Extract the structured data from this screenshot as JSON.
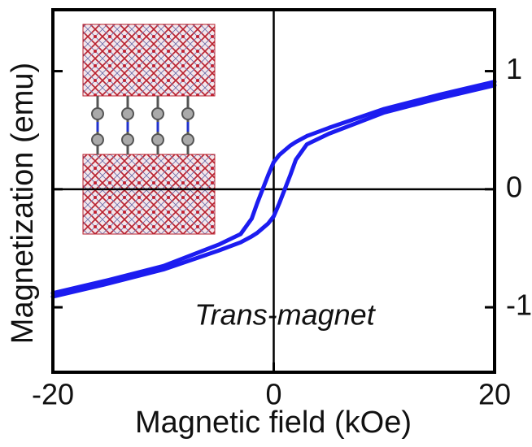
{
  "chart_data": {
    "type": "line",
    "xlabel": "Magnetic field (kOe)",
    "ylabel": "Magnetization (emu)",
    "annotation": "Trans-magnet",
    "x": [
      -20,
      -15,
      -10,
      -5,
      -3,
      -2,
      -1.5,
      -1,
      -0.5,
      0,
      0.5,
      1,
      1.5,
      2,
      3,
      5,
      10,
      15,
      20
    ],
    "series": [
      {
        "color": "#1c1cf0",
        "values": [
          -0.88,
          -0.77,
          -0.65,
          -0.47,
          -0.38,
          -0.25,
          -0.12,
          0.0,
          0.12,
          0.23,
          0.29,
          0.33,
          0.37,
          0.4,
          0.45,
          0.52,
          0.68,
          0.8,
          0.91
        ]
      },
      {
        "color": "#1c1cf0",
        "values": [
          -0.91,
          -0.8,
          -0.68,
          -0.52,
          -0.45,
          -0.4,
          -0.37,
          -0.33,
          -0.29,
          -0.23,
          -0.12,
          0.0,
          0.12,
          0.25,
          0.38,
          0.47,
          0.65,
          0.77,
          0.88
        ]
      }
    ],
    "xlim": [
      -20,
      20
    ],
    "ylim": [
      -1.55,
      1.52
    ],
    "xticks": [
      -20,
      0,
      20
    ],
    "yticks": [
      -1,
      0,
      1
    ]
  }
}
